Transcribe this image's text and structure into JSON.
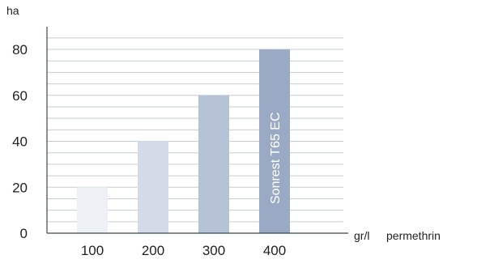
{
  "chart_data": {
    "type": "bar",
    "categories": [
      "100",
      "200",
      "300",
      "400"
    ],
    "values": [
      20,
      40,
      60,
      80
    ],
    "ylim": [
      0,
      90
    ],
    "yticks": [
      0,
      20,
      40,
      60,
      80
    ],
    "grid": true,
    "grid_step": 5,
    "ylabel": "ha",
    "xlabel_unit": "gr/l",
    "xlabel": "permethrin",
    "bar_label": {
      "index": 3,
      "text": "Sonrest T65 EC"
    },
    "colors": {
      "bars": [
        "#edf0f5",
        "#d3dbe7",
        "#b6c2d5",
        "#9aaac4"
      ],
      "grid": "#c6ccd6",
      "axis": "#3c4654",
      "text": "#222222",
      "bar_label": "#ffffff"
    }
  }
}
